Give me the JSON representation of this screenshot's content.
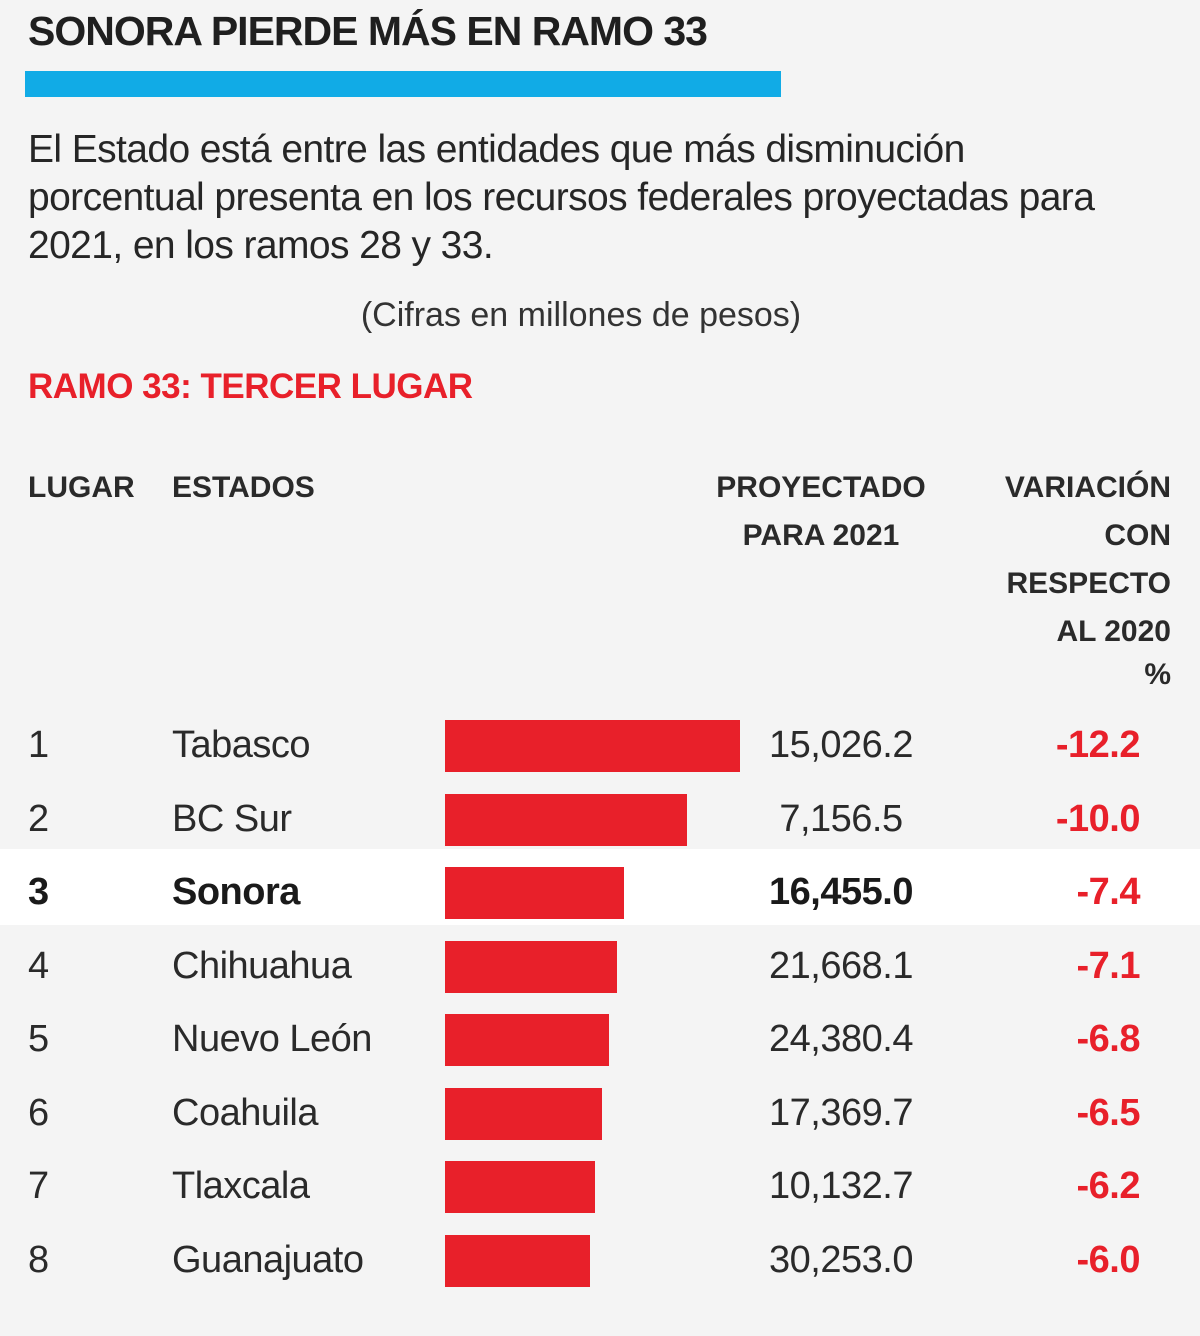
{
  "header": {
    "title": "SONORA PIERDE MÁS EN RAMO 33",
    "subtitle": "El Estado está entre las entidades que más disminución porcentual presenta en los recursos federales proyectadas para 2021, en los ramos 28 y 33.",
    "note": "(Cifras en millones de pesos)",
    "section": "RAMO 33: TERCER LUGAR"
  },
  "columns": {
    "rank": "LUGAR",
    "state": "ESTADOS",
    "value": "PROYECTADO\nPARA 2021",
    "variation": "VARIACIÓN\nCON\nRESPECTO\nAL 2020",
    "unit": "%"
  },
  "colors": {
    "accent_rule": "#11abe6",
    "bar": "#e8202a",
    "negative_text": "#e8202a",
    "highlight_row": "#ffffff"
  },
  "chart_data": {
    "type": "bar",
    "categories": [
      "Tabasco",
      "BC Sur",
      "Sonora",
      "Chihuahua",
      "Nuevo León",
      "Coahuila",
      "Tlaxcala",
      "Guanajuato"
    ],
    "ranks": [
      "1",
      "2",
      "3",
      "4",
      "5",
      "6",
      "7",
      "8"
    ],
    "value_labels": [
      "15,026.2",
      "7,156.5",
      "16,455.0",
      "21,668.1",
      "24,380.4",
      "17,369.7",
      "10,132.7",
      "30,253.0"
    ],
    "series": [
      {
        "values": [
          -12.2,
          -10.0,
          -7.4,
          -7.1,
          -6.8,
          -6.5,
          -6.2,
          -6.0
        ]
      }
    ],
    "variation_labels": [
      "-12.2",
      "-10.0",
      "-7.4",
      "-7.1",
      "-6.8",
      "-6.5",
      "-6.2",
      "-6.0"
    ],
    "highlight": "Sonora",
    "orientation": "horizontal"
  }
}
